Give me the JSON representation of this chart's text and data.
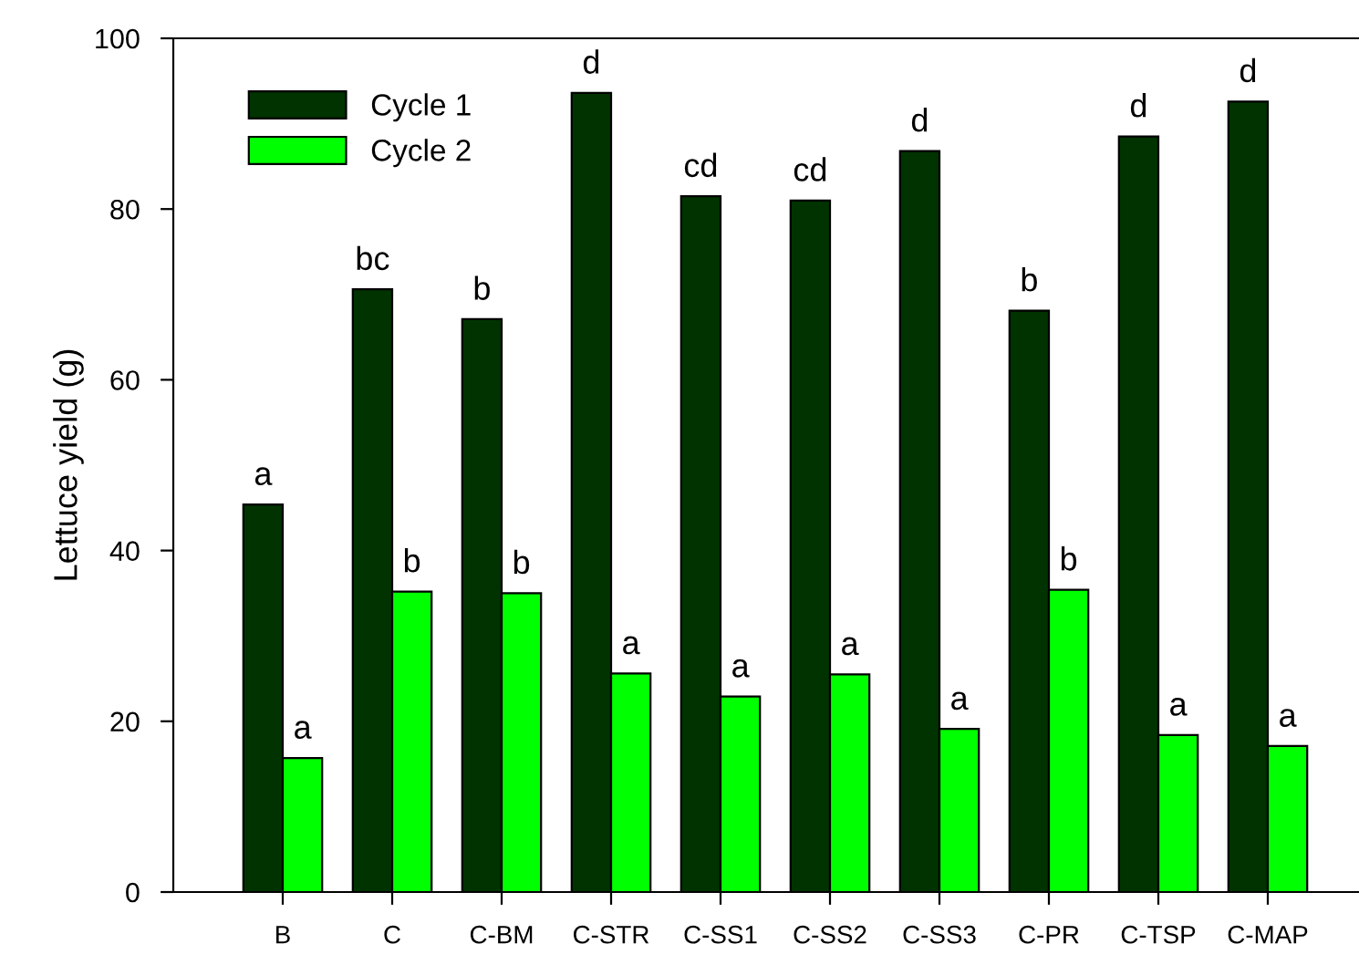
{
  "chart_data": {
    "type": "bar",
    "ylabel": "Lettuce yield (g)",
    "categories": [
      "B",
      "C",
      "C-BM",
      "C-STR",
      "C-SS1",
      "C-SS2",
      "C-SS3",
      "C-PR",
      "C-TSP",
      "C-MAP"
    ],
    "series": [
      {
        "name": "Cycle 1",
        "color": "#003300",
        "values": [
          45.4,
          70.6,
          67.1,
          93.6,
          81.5,
          81.0,
          86.8,
          68.1,
          88.5,
          92.6
        ],
        "value_labels": [
          "a",
          "bc",
          "b",
          "d",
          "cd",
          "cd",
          "d",
          "b",
          "d",
          "d"
        ]
      },
      {
        "name": "Cycle 2",
        "color": "#00ff00",
        "values": [
          15.7,
          35.2,
          35.0,
          25.6,
          22.9,
          25.5,
          19.1,
          35.4,
          18.4,
          17.1
        ],
        "value_labels": [
          "a",
          "b",
          "b",
          "a",
          "a",
          "a",
          "a",
          "b",
          "a",
          "a"
        ]
      }
    ],
    "ylim": [
      0,
      100
    ],
    "yticks": [
      0,
      20,
      40,
      60,
      80,
      100
    ],
    "grid": false,
    "legend": "top left"
  }
}
